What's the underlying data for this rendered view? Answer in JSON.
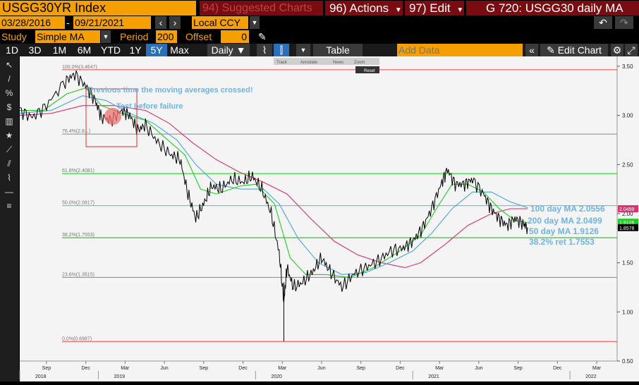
{
  "header": {
    "ticker": "USGG30YR Index",
    "suggested": "94) Suggested Charts",
    "actions": "96) Actions",
    "edit": "97) Edit",
    "title": "G 720: USGG30 daily MA"
  },
  "range": {
    "start": "03/28/2016",
    "end": "09/21/2021",
    "currency": "Local CCY"
  },
  "study": {
    "label": "Study",
    "value": "Simple MA",
    "period_label": "Period",
    "period": "200",
    "offset_label": "Offset",
    "offset": "0"
  },
  "toolbar": {
    "periods": [
      "1D",
      "3D",
      "1M",
      "6M",
      "YTD",
      "1Y",
      "5Y",
      "Max"
    ],
    "active_period": "5Y",
    "freq": "Daily",
    "table": "Table",
    "add_data_placeholder": "Add Data",
    "edit_chart": "Edit Chart"
  },
  "mini_toolbar": {
    "items": [
      "Track",
      "Annotate",
      "News",
      "Zoom"
    ],
    "reset": "Reset"
  },
  "colors": {
    "bg": "#f5f5f5",
    "price": "#000000",
    "ma50": "#22cc22",
    "ma100": "#4aa3e8",
    "ma200": "#e03070",
    "fib": "#00dd00",
    "accent": "#f5a000"
  },
  "chart_data": {
    "type": "line",
    "title": "",
    "ylim": [
      0.5,
      3.6
    ],
    "y_ticks": [
      "3.50",
      "3.00",
      "2.50",
      "2.00",
      "1.50",
      "1.00",
      "0.50"
    ],
    "x_month_ticks": [
      "Sep",
      "Dec",
      "Mar",
      "Jun",
      "Sep",
      "Dec",
      "Mar",
      "Jun",
      "Sep",
      "Dec",
      "Mar",
      "Jun",
      "Sep",
      "Dec",
      "Mar"
    ],
    "x_year_ticks": [
      "2018",
      "2019",
      "2020",
      "2021",
      "2022"
    ],
    "series": [
      {
        "name": "USGG30YR",
        "points": [
          [
            2018.5,
            3.05
          ],
          [
            2018.58,
            2.98
          ],
          [
            2018.67,
            3.1
          ],
          [
            2018.79,
            3.35
          ],
          [
            2018.85,
            3.42
          ],
          [
            2018.92,
            3.3
          ],
          [
            2018.98,
            3.15
          ],
          [
            2019.02,
            2.98
          ],
          [
            2019.08,
            2.95
          ],
          [
            2019.15,
            3.05
          ],
          [
            2019.2,
            3.0
          ],
          [
            2019.25,
            2.85
          ],
          [
            2019.3,
            2.9
          ],
          [
            2019.38,
            2.72
          ],
          [
            2019.46,
            2.6
          ],
          [
            2019.52,
            2.55
          ],
          [
            2019.57,
            2.2
          ],
          [
            2019.62,
            1.95
          ],
          [
            2019.67,
            2.1
          ],
          [
            2019.72,
            2.28
          ],
          [
            2019.78,
            2.25
          ],
          [
            2019.85,
            2.35
          ],
          [
            2019.92,
            2.32
          ],
          [
            2019.98,
            2.38
          ],
          [
            2020.04,
            2.25
          ],
          [
            2020.1,
            2.0
          ],
          [
            2020.15,
            1.6
          ],
          [
            2020.18,
            1.1
          ],
          [
            2020.2,
            1.45
          ],
          [
            2020.24,
            1.25
          ],
          [
            2020.3,
            1.3
          ],
          [
            2020.36,
            1.4
          ],
          [
            2020.42,
            1.55
          ],
          [
            2020.48,
            1.4
          ],
          [
            2020.55,
            1.25
          ],
          [
            2020.62,
            1.38
          ],
          [
            2020.7,
            1.45
          ],
          [
            2020.78,
            1.52
          ],
          [
            2020.86,
            1.62
          ],
          [
            2020.94,
            1.65
          ],
          [
            2021.0,
            1.72
          ],
          [
            2021.06,
            1.85
          ],
          [
            2021.12,
            2.05
          ],
          [
            2021.18,
            2.3
          ],
          [
            2021.22,
            2.45
          ],
          [
            2021.27,
            2.3
          ],
          [
            2021.33,
            2.3
          ],
          [
            2021.38,
            2.35
          ],
          [
            2021.45,
            2.2
          ],
          [
            2021.5,
            2.05
          ],
          [
            2021.55,
            1.95
          ],
          [
            2021.6,
            1.88
          ],
          [
            2021.65,
            1.95
          ],
          [
            2021.7,
            1.9
          ],
          [
            2021.73,
            1.86
          ]
        ]
      },
      {
        "name": "50 day MA",
        "points": [
          [
            2018.5,
            3.05
          ],
          [
            2018.65,
            3.05
          ],
          [
            2018.8,
            3.22
          ],
          [
            2018.92,
            3.28
          ],
          [
            2019.02,
            3.1
          ],
          [
            2019.15,
            3.02
          ],
          [
            2019.3,
            2.95
          ],
          [
            2019.42,
            2.78
          ],
          [
            2019.55,
            2.6
          ],
          [
            2019.65,
            2.25
          ],
          [
            2019.75,
            2.2
          ],
          [
            2019.9,
            2.28
          ],
          [
            2020.0,
            2.3
          ],
          [
            2020.12,
            2.1
          ],
          [
            2020.22,
            1.55
          ],
          [
            2020.32,
            1.38
          ],
          [
            2020.45,
            1.38
          ],
          [
            2020.6,
            1.35
          ],
          [
            2020.75,
            1.45
          ],
          [
            2020.9,
            1.6
          ],
          [
            2021.05,
            1.78
          ],
          [
            2021.15,
            2.05
          ],
          [
            2021.25,
            2.3
          ],
          [
            2021.35,
            2.3
          ],
          [
            2021.45,
            2.22
          ],
          [
            2021.55,
            2.05
          ],
          [
            2021.65,
            1.93
          ],
          [
            2021.73,
            1.91
          ]
        ]
      },
      {
        "name": "100 day MA",
        "points": [
          [
            2018.5,
            3.02
          ],
          [
            2018.7,
            3.05
          ],
          [
            2018.9,
            3.2
          ],
          [
            2019.05,
            3.15
          ],
          [
            2019.2,
            3.02
          ],
          [
            2019.35,
            2.92
          ],
          [
            2019.5,
            2.75
          ],
          [
            2019.62,
            2.5
          ],
          [
            2019.75,
            2.3
          ],
          [
            2019.9,
            2.25
          ],
          [
            2020.05,
            2.25
          ],
          [
            2020.15,
            2.1
          ],
          [
            2020.27,
            1.75
          ],
          [
            2020.4,
            1.5
          ],
          [
            2020.55,
            1.38
          ],
          [
            2020.7,
            1.4
          ],
          [
            2020.85,
            1.5
          ],
          [
            2021.0,
            1.62
          ],
          [
            2021.12,
            1.8
          ],
          [
            2021.25,
            2.05
          ],
          [
            2021.38,
            2.22
          ],
          [
            2021.5,
            2.22
          ],
          [
            2021.62,
            2.12
          ],
          [
            2021.73,
            2.06
          ]
        ]
      },
      {
        "name": "200 day MA",
        "points": [
          [
            2018.5,
            3.0
          ],
          [
            2018.7,
            3.02
          ],
          [
            2018.9,
            3.1
          ],
          [
            2019.1,
            3.1
          ],
          [
            2019.3,
            3.05
          ],
          [
            2019.45,
            2.92
          ],
          [
            2019.6,
            2.72
          ],
          [
            2019.75,
            2.55
          ],
          [
            2019.9,
            2.42
          ],
          [
            2020.05,
            2.32
          ],
          [
            2020.2,
            2.2
          ],
          [
            2020.35,
            1.95
          ],
          [
            2020.5,
            1.72
          ],
          [
            2020.65,
            1.58
          ],
          [
            2020.8,
            1.5
          ],
          [
            2020.95,
            1.45
          ],
          [
            2021.05,
            1.5
          ],
          [
            2021.2,
            1.68
          ],
          [
            2021.35,
            1.88
          ],
          [
            2021.5,
            2.0
          ],
          [
            2021.62,
            2.05
          ],
          [
            2021.73,
            2.05
          ]
        ]
      }
    ],
    "fib_levels": [
      {
        "label": "100.0%(3.4647)",
        "value": 3.4647,
        "color": "#ff4040"
      },
      {
        "label": "76.4%(2.8...)",
        "value": 2.81,
        "color": "#888888"
      },
      {
        "label": "61.8%(2.4081)",
        "value": 2.4081,
        "color": "#00dd00"
      },
      {
        "label": "50.0%(2.0817)",
        "value": 2.0817,
        "color": "#33cccc"
      },
      {
        "label": "38.2%(1.7553)",
        "value": 1.7553,
        "color": "#00bb00"
      },
      {
        "label": "23.6%(1.3515)",
        "value": 1.3515,
        "color": "#888888"
      },
      {
        "label": "0.0%(0.6987)",
        "value": 0.6987,
        "color": "#ff4040"
      }
    ],
    "annotations": [
      {
        "text": "Previous time the moving averages crossed!"
      },
      {
        "text": "Test before failure"
      },
      {
        "text": "100 day MA 2.0556"
      },
      {
        "text": "200 day MA 2.0499"
      },
      {
        "text": "50 day MA 1.9126"
      },
      {
        "text": "38.2% ret 1.7553"
      }
    ],
    "last_value_badges": [
      {
        "text": "2.0499",
        "color": "#e03070",
        "value": 2.0499
      },
      {
        "text": "1.9126",
        "color": "#22cc22",
        "value": 1.9126
      },
      {
        "text": "1.8578",
        "color": "#000000",
        "value": 1.8578
      }
    ]
  }
}
